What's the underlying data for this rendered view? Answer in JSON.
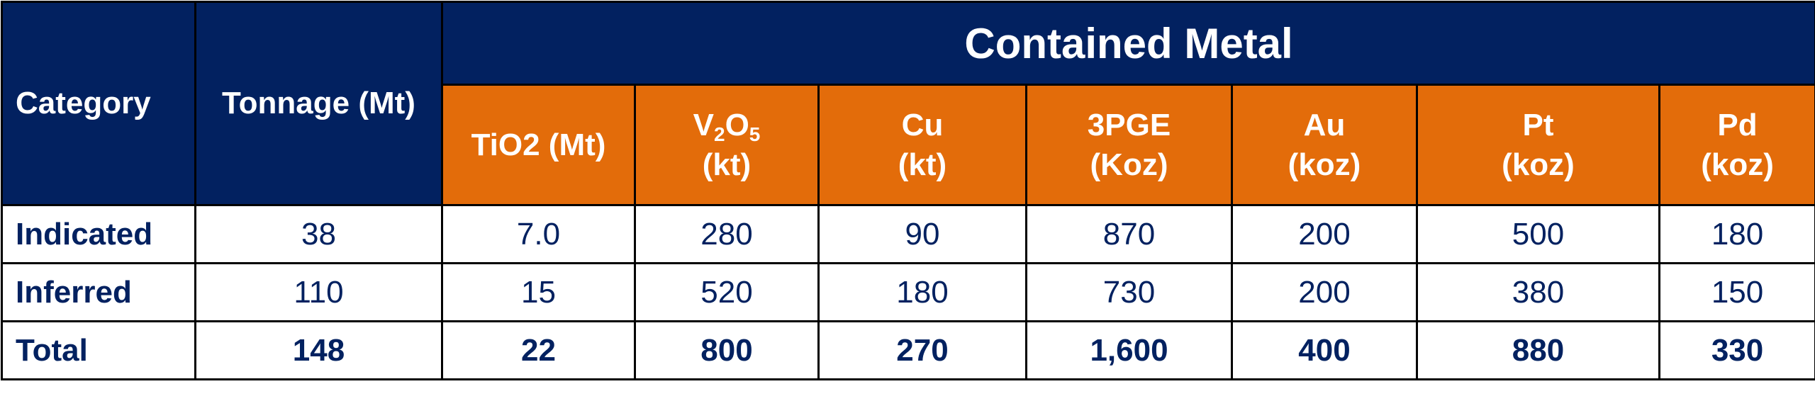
{
  "table": {
    "category_header": "Category",
    "tonnage_header": "Tonnage (Mt)",
    "group_header": "Contained Metal",
    "columns": {
      "tio2": "TiO2 (Mt)",
      "v2o5": {
        "v": "V",
        "sub1": "2",
        "o": "O",
        "sub2": "5",
        "unit": "(kt)"
      },
      "cu": {
        "name": "Cu",
        "unit": "(kt)"
      },
      "pge": {
        "name": "3PGE",
        "unit": "(Koz)"
      },
      "au": {
        "name": "Au",
        "unit": "(koz)"
      },
      "pt": {
        "name": "Pt",
        "unit": "(koz)"
      },
      "pd": {
        "name": "Pd",
        "unit": "(koz)"
      }
    },
    "rows": [
      {
        "category": "Indicated",
        "tonnage": "38",
        "tio2": "7.0",
        "v2o5": "280",
        "cu": "90",
        "pge": "870",
        "au": "200",
        "pt": "500",
        "pd": "180"
      },
      {
        "category": "Inferred",
        "tonnage": "110",
        "tio2": "15",
        "v2o5": "520",
        "cu": "180",
        "pge": "730",
        "au": "200",
        "pt": "380",
        "pd": "150"
      },
      {
        "category": "Total",
        "tonnage": "148",
        "tio2": "22",
        "v2o5": "800",
        "cu": "270",
        "pge": "1,600",
        "au": "400",
        "pt": "880",
        "pd": "330"
      }
    ],
    "colors": {
      "navy": "#022160",
      "orange": "#E36C0A",
      "text": "#022160",
      "border": "#000000"
    }
  }
}
